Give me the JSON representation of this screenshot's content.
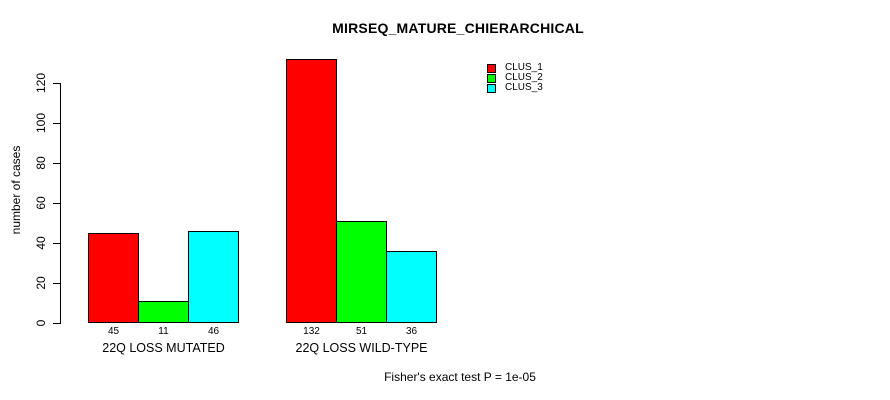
{
  "chart_data": {
    "type": "bar",
    "title": "MIRSEQ_MATURE_CHIERARCHICAL",
    "xlabel": "",
    "ylabel": "number of cases",
    "categories": [
      "22Q LOSS MUTATED",
      "22Q LOSS WILD-TYPE"
    ],
    "series": [
      {
        "name": "CLUS_1",
        "color": "#FF0000",
        "values": [
          45,
          132
        ]
      },
      {
        "name": "CLUS_2",
        "color": "#00FF00",
        "values": [
          11,
          51
        ]
      },
      {
        "name": "CLUS_3",
        "color": "#00FFFF",
        "values": [
          46,
          36
        ]
      }
    ],
    "yticks": [
      0,
      20,
      40,
      60,
      80,
      100,
      120
    ],
    "ylim": [
      0,
      132
    ],
    "grid": false,
    "legend_position": "top-right",
    "annotation": "Fisher's exact test P = 1e-05"
  },
  "colors": {
    "background": "#FFFFFF",
    "axis": "#000000",
    "text": "#000000"
  }
}
